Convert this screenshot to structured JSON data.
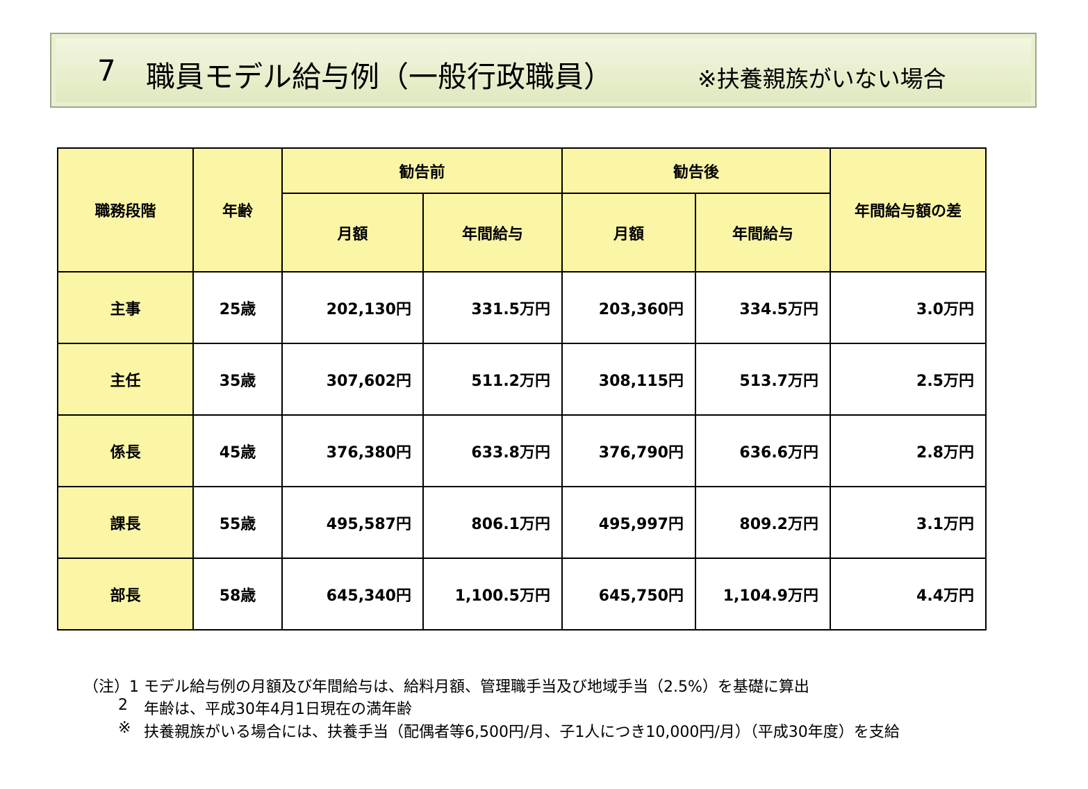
{
  "title": {
    "number": "7",
    "main": "職員モデル給与例（一般行政職員）",
    "sub": "※扶養親族がいない場合"
  },
  "table": {
    "headers": {
      "grade": "職務段階",
      "age": "年齢",
      "before": "勧告前",
      "after": "勧告後",
      "monthly_before": "月額",
      "annual_before": "年間給与",
      "monthly_after": "月額",
      "annual_after": "年間給与",
      "diff": "年間給与額の差"
    },
    "rows": [
      [
        "主事",
        "25歳",
        "202,130円",
        "331.5万円",
        "203,360円",
        "334.5万円",
        "3.0万円"
      ],
      [
        "主任",
        "35歳",
        "307,602円",
        "511.2万円",
        "308,115円",
        "513.7万円",
        "2.5万円"
      ],
      [
        "係長",
        "45歳",
        "376,380円",
        "633.8万円",
        "376,790円",
        "636.6万円",
        "2.8万円"
      ],
      [
        "課長",
        "55歳",
        "495,587円",
        "806.1万円",
        "495,997円",
        "809.2万円",
        "3.1万円"
      ],
      [
        "部長",
        "58歳",
        "645,340円",
        "1,100.5万円",
        "645,750円",
        "1,104.9万円",
        "4.4万円"
      ]
    ]
  },
  "notes": [
    {
      "marker": "（注）1",
      "text": "モデル給与例の月額及び年間給与は、給料月額、管理職手当及び地域手当（2.5%）を基礎に算出"
    },
    {
      "marker": "2",
      "text": "年齢は、平成30年4月1日現在の満年齢"
    },
    {
      "marker": "※",
      "text": "扶養親族がいる場合には、扶養手当（配偶者等6,500円/月、子1人につき10,000円/月）（平成30年度）を支給"
    }
  ]
}
